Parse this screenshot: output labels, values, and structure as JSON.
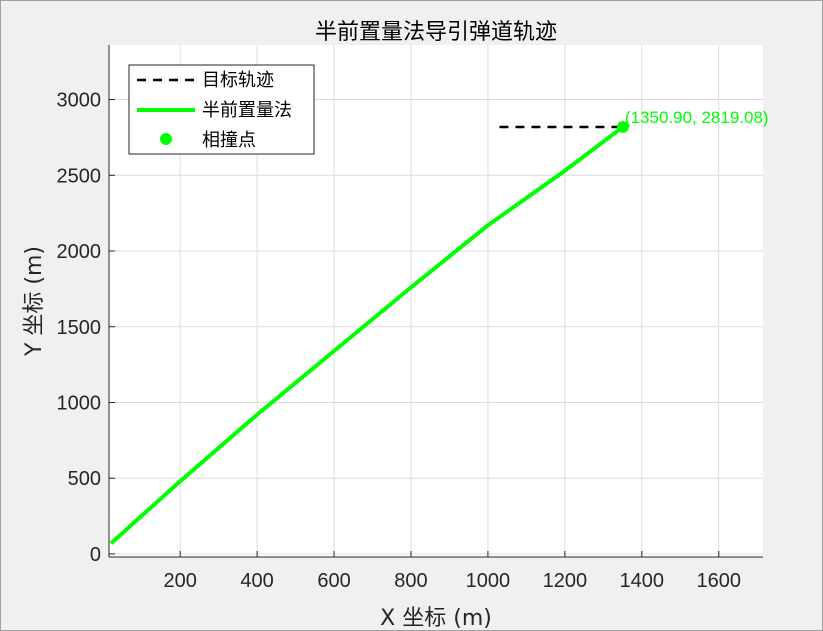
{
  "chart_data": {
    "type": "line",
    "title": "半前置量法导引弹道轨迹",
    "xlabel": "X 坐标 (m)",
    "ylabel": "Y 坐标 (m)",
    "xlim": [
      15,
      1715
    ],
    "ylim": [
      -20,
      3360
    ],
    "xticks": [
      200,
      400,
      600,
      800,
      1000,
      1200,
      1400,
      1600
    ],
    "yticks": [
      0,
      500,
      1000,
      1500,
      2000,
      2500,
      3000
    ],
    "grid": true,
    "legend_position": "top-left",
    "series": [
      {
        "name": "目标轨迹",
        "style": "dashed",
        "color": "#000000",
        "x": [
          1030,
          1350.9
        ],
        "y": [
          2819.08,
          2819.08
        ]
      },
      {
        "name": "半前置量法",
        "style": "solid",
        "color": "#00ff00",
        "x": [
          20,
          200,
          400,
          600,
          800,
          1000,
          1200,
          1350.9
        ],
        "y": [
          70,
          480,
          920,
          1340,
          1760,
          2170,
          2530,
          2819.08
        ]
      },
      {
        "name": "相撞点",
        "style": "marker",
        "color": "#00ff00",
        "x": [
          1350.9
        ],
        "y": [
          2819.08
        ]
      }
    ],
    "annotations": [
      {
        "text": "(1350.90, 2819.08)",
        "x": 1350.9,
        "y": 2819.08,
        "color": "#00ff00"
      }
    ]
  }
}
